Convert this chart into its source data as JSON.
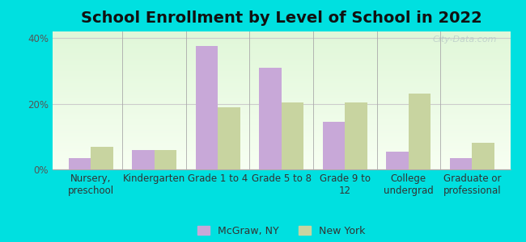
{
  "title": "School Enrollment by Level of School in 2022",
  "categories": [
    "Nursery,\npreschool",
    "Kindergarten",
    "Grade 1 to 4",
    "Grade 5 to 8",
    "Grade 9 to\n12",
    "College\nundergrad",
    "Graduate or\nprofessional"
  ],
  "mcgraw_values": [
    3.5,
    6.0,
    37.5,
    31.0,
    14.5,
    5.5,
    3.5
  ],
  "newyork_values": [
    7.0,
    6.0,
    19.0,
    20.5,
    20.5,
    23.0,
    8.0
  ],
  "mcgraw_color": "#c8a8d8",
  "newyork_color": "#c8d4a0",
  "ylim": [
    0,
    42
  ],
  "yticks": [
    0,
    20,
    40
  ],
  "ytick_labels": [
    "0%",
    "20%",
    "40%"
  ],
  "background_color": "#00e0e0",
  "legend_labels": [
    "McGraw, NY",
    "New York"
  ],
  "title_fontsize": 14,
  "tick_fontsize": 8.5,
  "legend_fontsize": 9,
  "watermark": "City-Data.com"
}
